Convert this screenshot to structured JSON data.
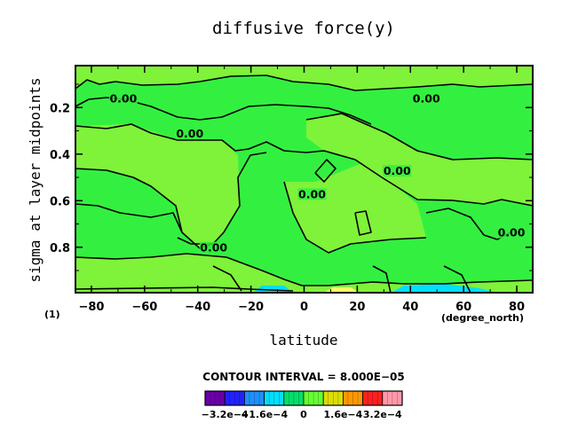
{
  "chart_data": {
    "type": "heatmap",
    "title": "diffusive force(y)",
    "xlabel": "latitude",
    "ylabel": "sigma at layer midpoints",
    "x_unit": "(degree_north)",
    "corner_label": "(1)",
    "xlim": [
      -86,
      86
    ],
    "ylim": [
      0.995,
      0.02
    ],
    "x_ticks": [
      -80,
      -60,
      -40,
      -20,
      0,
      20,
      40,
      60,
      80
    ],
    "x_tick_labels": [
      "−80",
      "−60",
      "−40",
      "−20",
      "0",
      "20",
      "40",
      "60",
      "80"
    ],
    "y_ticks": [
      0.2,
      0.4,
      0.6,
      0.8
    ],
    "y_tick_labels": [
      "0.2",
      "0.4",
      "0.6",
      "0.8"
    ],
    "contour_labels": [
      {
        "text": "0.00",
        "x": -68,
        "y": 0.175
      },
      {
        "text": "0.00",
        "x": -43,
        "y": 0.325
      },
      {
        "text": "0.00",
        "x": 3,
        "y": 0.585
      },
      {
        "text": "0.00",
        "x": -34,
        "y": 0.815
      },
      {
        "text": "0.00",
        "x": 46,
        "y": 0.175
      },
      {
        "text": "0.00",
        "x": 35,
        "y": 0.485
      },
      {
        "text": "0.00",
        "x": 78,
        "y": 0.75
      }
    ],
    "contour_interval_text": "CONTOUR INTERVAL = 8.000E−05",
    "colorbar": {
      "levels": [
        -0.00032,
        -0.00024,
        -0.00016,
        -8e-05,
        0,
        8e-05,
        0.00016,
        0.00024,
        0.00032
      ],
      "tick_labels": [
        "−3.2e−4",
        "−1.6e−4",
        "0",
        "1.6e−4",
        "3.2e−4"
      ],
      "colors": [
        "#6a00a8",
        "#2222ff",
        "#1e90ff",
        "#00e0ff",
        "#00e06a",
        "#66ff33",
        "#dddd00",
        "#ff9900",
        "#ff2020",
        "#ff99aa"
      ]
    },
    "colors": {
      "field": "#33f040",
      "light_field": "#7ff23a",
      "negative": "#00e0ff",
      "positive": "#ffff66"
    }
  }
}
